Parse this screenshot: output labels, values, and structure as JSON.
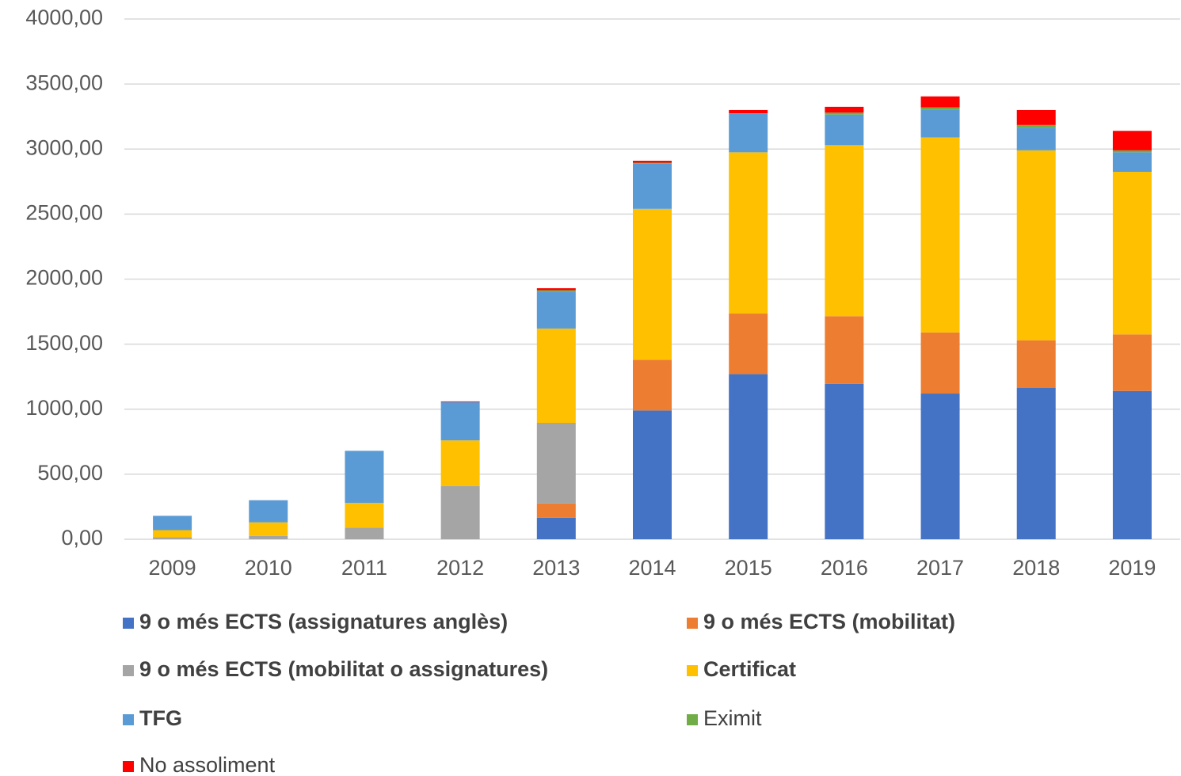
{
  "chart_data": {
    "type": "stacked_bar",
    "categories": [
      "2009",
      "2010",
      "2011",
      "2012",
      "2013",
      "2014",
      "2015",
      "2016",
      "2017",
      "2018",
      "2019"
    ],
    "series": [
      {
        "name": "9 o més ECTS (assignatures anglès)",
        "color": "#4472c4",
        "bold": true,
        "values": [
          0,
          0,
          0,
          0,
          165,
          990,
          1270,
          1195,
          1120,
          1165,
          1140
        ]
      },
      {
        "name": "9 o més ECTS (mobilitat)",
        "color": "#ed7d31",
        "bold": true,
        "values": [
          0,
          0,
          0,
          0,
          110,
          390,
          465,
          520,
          470,
          365,
          435
        ]
      },
      {
        "name": "9 o més ECTS (mobilitat o assignatures)",
        "color": "#a5a5a5",
        "bold": true,
        "values": [
          15,
          25,
          90,
          410,
          620,
          0,
          0,
          0,
          0,
          0,
          0
        ]
      },
      {
        "name": "Certificat",
        "color": "#ffc000",
        "bold": true,
        "values": [
          55,
          105,
          190,
          350,
          725,
          1160,
          1240,
          1315,
          1500,
          1460,
          1250
        ]
      },
      {
        "name": "TFG",
        "color": "#5b9bd5",
        "bold": true,
        "values": [
          110,
          170,
          400,
          295,
          285,
          350,
          295,
          235,
          215,
          175,
          150
        ]
      },
      {
        "name": "Eximit",
        "color": "#70ad47",
        "bold": false,
        "values": [
          0,
          0,
          0,
          0,
          10,
          5,
          5,
          15,
          15,
          20,
          15
        ]
      },
      {
        "name": "No assoliment",
        "color": "#ff0000",
        "bold": false,
        "values": [
          0,
          0,
          0,
          5,
          15,
          15,
          25,
          45,
          85,
          115,
          150
        ]
      }
    ],
    "ylim": [
      0,
      4000
    ],
    "yticks": [
      {
        "value": 0,
        "label": "0,00"
      },
      {
        "value": 500,
        "label": "500,00"
      },
      {
        "value": 1000,
        "label": "1000,00"
      },
      {
        "value": 1500,
        "label": "1500,00"
      },
      {
        "value": 2000,
        "label": "2000,00"
      },
      {
        "value": 2500,
        "label": "2500,00"
      },
      {
        "value": 3000,
        "label": "3000,00"
      },
      {
        "value": 3500,
        "label": "3500,00"
      },
      {
        "value": 4000,
        "label": "4000,00"
      }
    ],
    "grid": true,
    "legend": "bottom"
  }
}
